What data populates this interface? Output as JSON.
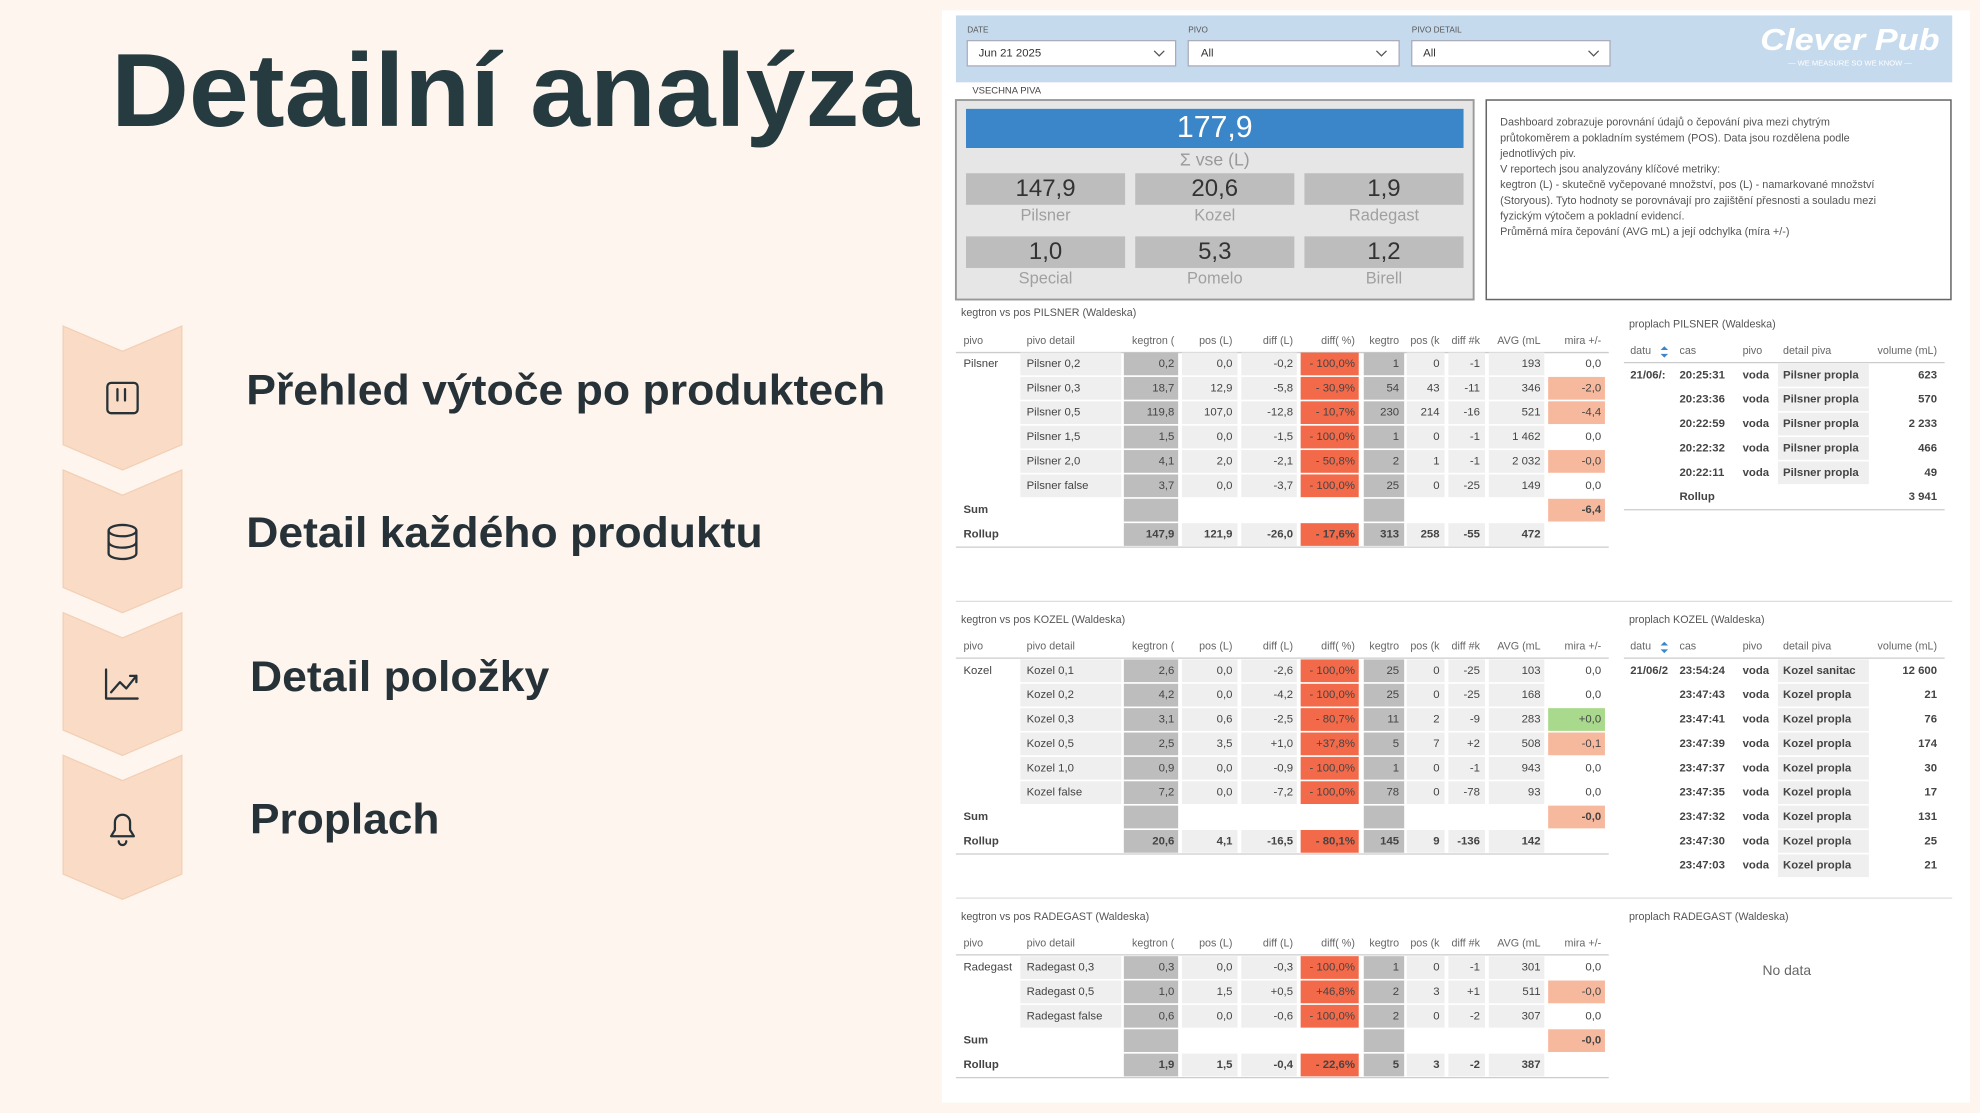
{
  "slide": {
    "title": "Detailní analýza",
    "items": [
      "Přehled výtoče po produktech",
      "Detail každého produktu",
      "Detail položky",
      "Proplach"
    ]
  },
  "dashboard": {
    "filters": [
      {
        "label": "DATE",
        "value": "Jun 21 2025"
      },
      {
        "label": "PIVO",
        "value": "All"
      },
      {
        "label": "PIVO DETAIL",
        "value": "All"
      }
    ],
    "logo": {
      "name": "Clever Pub",
      "tagline": "— WE MEASURE SO WE KNOW —"
    },
    "section_label": "VSECHNA PIVA",
    "total": {
      "value": "177,9",
      "label": "Σ vse (L)"
    },
    "cards": [
      {
        "value": "147,9",
        "label": "Pilsner"
      },
      {
        "value": "20,6",
        "label": "Kozel"
      },
      {
        "value": "1,9",
        "label": "Radegast"
      },
      {
        "value": "1,0",
        "label": "Special"
      },
      {
        "value": "5,3",
        "label": "Pomelo"
      },
      {
        "value": "1,2",
        "label": "Birell"
      }
    ],
    "description": [
      "Dashboard zobrazuje porovnání údajů o čepování piva mezi chytrým",
      "průtokoměrem a pokladním systémem (POS). Data jsou rozdělena podle",
      "jednotlivých piv.",
      "V reportech jsou analyzovány klíčové metriky:",
      "kegtron (L) - skutečně vyčepované množství, pos (L) - namarkované množství",
      "(Storyous). Tyto hodnoty se porovnávají pro zajištění přesnosti a souladu mezi",
      "fyzickým výtočem a pokladní evidencí.",
      "Průměrná míra čepování (AVG mL) a její odchylka (míra +/-)"
    ],
    "kegtron_tables": [
      {
        "title": "kegtron vs pos PILSNER (Waldeska)",
        "headers": [
          "pivo",
          "pivo detail",
          "kegtron (",
          "pos (L)",
          "diff (L)",
          "diff( %)",
          "kegtro",
          "pos (k",
          "diff #k",
          "AVG (mL",
          "mira +/-"
        ],
        "rows": [
          [
            "Pilsner",
            "Pilsner 0,2",
            "0,2",
            "0,0",
            "-0,2",
            "- 100,0%",
            "1",
            "0",
            "-1",
            "193",
            "0,0"
          ],
          [
            null,
            "Pilsner 0,3",
            "18,7",
            "12,9",
            "-5,8",
            "- 30,9%",
            "54",
            "43",
            "-11",
            "346",
            "-2,0"
          ],
          [
            null,
            "Pilsner 0,5",
            "119,8",
            "107,0",
            "-12,8",
            "- 10,7%",
            "230",
            "214",
            "-16",
            "521",
            "-4,4"
          ],
          [
            null,
            "Pilsner 1,5",
            "1,5",
            "0,0",
            "-1,5",
            "- 100,0%",
            "1",
            "0",
            "-1",
            "1 462",
            "0,0"
          ],
          [
            null,
            "Pilsner 2,0",
            "4,1",
            "2,0",
            "-2,1",
            "- 50,8%",
            "2",
            "1",
            "-1",
            "2 032",
            "-0,0"
          ],
          [
            null,
            "Pilsner false",
            "3,7",
            "0,0",
            "-3,7",
            "- 100,0%",
            "25",
            "0",
            "-25",
            "149",
            "0,0"
          ]
        ],
        "sum": [
          "Sum",
          null,
          null,
          null,
          null,
          null,
          null,
          null,
          null,
          null,
          "-6,4"
        ],
        "rollup": [
          "Rollup",
          null,
          "147,9",
          "121,9",
          "-26,0",
          "- 17,6%",
          "313",
          "258",
          "-55",
          "472",
          null
        ]
      },
      {
        "title": "kegtron vs pos KOZEL (Waldeska)",
        "headers": [
          "pivo",
          "pivo detail",
          "kegtron (",
          "pos (L)",
          "diff (L)",
          "diff( %)",
          "kegtro",
          "pos (k",
          "diff #k",
          "AVG (mL",
          "mira +/-"
        ],
        "rows": [
          [
            "Kozel",
            "Kozel 0,1",
            "2,6",
            "0,0",
            "-2,6",
            "- 100,0%",
            "25",
            "0",
            "-25",
            "103",
            "0,0"
          ],
          [
            null,
            "Kozel 0,2",
            "4,2",
            "0,0",
            "-4,2",
            "- 100,0%",
            "25",
            "0",
            "-25",
            "168",
            "0,0"
          ],
          [
            null,
            "Kozel 0,3",
            "3,1",
            "0,6",
            "-2,5",
            "- 80,7%",
            "11",
            "2",
            "-9",
            "283",
            "+0,0"
          ],
          [
            null,
            "Kozel 0,5",
            "2,5",
            "3,5",
            "+1,0",
            "+37,8%",
            "5",
            "7",
            "+2",
            "508",
            "-0,1"
          ],
          [
            null,
            "Kozel 1,0",
            "0,9",
            "0,0",
            "-0,9",
            "- 100,0%",
            "1",
            "0",
            "-1",
            "943",
            "0,0"
          ],
          [
            null,
            "Kozel false",
            "7,2",
            "0,0",
            "-7,2",
            "- 100,0%",
            "78",
            "0",
            "-78",
            "93",
            "0,0"
          ]
        ],
        "sum": [
          "Sum",
          null,
          null,
          null,
          null,
          null,
          null,
          null,
          null,
          null,
          "-0,0"
        ],
        "rollup": [
          "Rollup",
          null,
          "20,6",
          "4,1",
          "-16,5",
          "- 80,1%",
          "145",
          "9",
          "-136",
          "142",
          null
        ]
      },
      {
        "title": "kegtron vs pos RADEGAST (Waldeska)",
        "headers": [
          "pivo",
          "pivo detail",
          "kegtron (",
          "pos (L)",
          "diff (L)",
          "diff( %)",
          "kegtro",
          "pos (k",
          "diff #k",
          "AVG (mL",
          "mira +/-"
        ],
        "rows": [
          [
            "Radegast",
            "Radegast 0,3",
            "0,3",
            "0,0",
            "-0,3",
            "- 100,0%",
            "1",
            "0",
            "-1",
            "301",
            "0,0"
          ],
          [
            null,
            "Radegast 0,5",
            "1,0",
            "1,5",
            "+0,5",
            "+46,8%",
            "2",
            "3",
            "+1",
            "511",
            "-0,0"
          ],
          [
            null,
            "Radegast false",
            "0,6",
            "0,0",
            "-0,6",
            "- 100,0%",
            "2",
            "0",
            "-2",
            "307",
            "0,0"
          ]
        ],
        "sum": [
          "Sum",
          null,
          null,
          null,
          null,
          null,
          null,
          null,
          null,
          null,
          "-0,0"
        ],
        "rollup": [
          "Rollup",
          null,
          "1,9",
          "1,5",
          "-0,4",
          "- 22,6%",
          "5",
          "3",
          "-2",
          "387",
          null
        ]
      }
    ],
    "proplach_tables": [
      {
        "title": "proplach PILSNER (Waldeska)",
        "headers": [
          "datu",
          "cas",
          "pivo",
          "detail piva",
          "volume (mL)"
        ],
        "rows": [
          [
            "21/06/:",
            "20:25:31",
            "voda",
            "Pilsner propla",
            "623"
          ],
          [
            null,
            "20:23:36",
            "voda",
            "Pilsner propla",
            "570"
          ],
          [
            null,
            "20:22:59",
            "voda",
            "Pilsner propla",
            "2 233"
          ],
          [
            null,
            "20:22:32",
            "voda",
            "Pilsner propla",
            "466"
          ],
          [
            null,
            "20:22:11",
            "voda",
            "Pilsner propla",
            "49"
          ]
        ],
        "rollup": [
          null,
          "Rollup",
          null,
          null,
          "3 941"
        ]
      },
      {
        "title": "proplach KOZEL (Waldeska)",
        "headers": [
          "datu",
          "cas",
          "pivo",
          "detail piva",
          "volume (mL)"
        ],
        "rows": [
          [
            "21/06/2",
            "23:54:24",
            "voda",
            "Kozel sanitac",
            "12 600"
          ],
          [
            null,
            "23:47:43",
            "voda",
            "Kozel propla",
            "21"
          ],
          [
            null,
            "23:47:41",
            "voda",
            "Kozel propla",
            "76"
          ],
          [
            null,
            "23:47:39",
            "voda",
            "Kozel propla",
            "174"
          ],
          [
            null,
            "23:47:37",
            "voda",
            "Kozel propla",
            "30"
          ],
          [
            null,
            "23:47:35",
            "voda",
            "Kozel propla",
            "17"
          ],
          [
            null,
            "23:47:32",
            "voda",
            "Kozel propla",
            "131"
          ],
          [
            null,
            "23:47:30",
            "voda",
            "Kozel propla",
            "25"
          ],
          [
            null,
            "23:47:03",
            "voda",
            "Kozel propla",
            "21"
          ]
        ]
      },
      {
        "title": "proplach RADEGAST (Waldeska)",
        "no_data": "No data"
      }
    ]
  }
}
